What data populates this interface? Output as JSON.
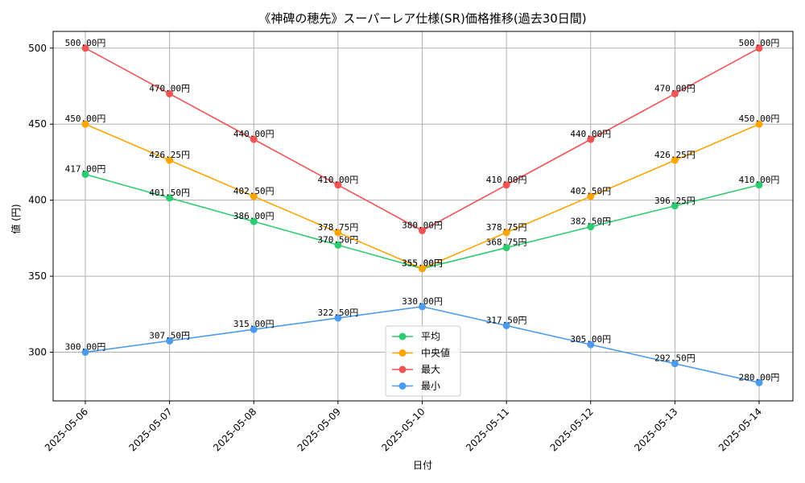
{
  "chart_data": {
    "type": "line",
    "title": "《神碑の穂先》スーパーレア仕様(SR)価格推移(過去30日間)",
    "xlabel": "日付",
    "ylabel": "値 (円)",
    "categories": [
      "2025-05-06",
      "2025-05-07",
      "2025-05-08",
      "2025-05-09",
      "2025-05-10",
      "2025-05-11",
      "2025-05-12",
      "2025-05-13",
      "2025-05-14"
    ],
    "ylim": [
      268,
      511
    ],
    "yticks": [
      300,
      350,
      400,
      450,
      500
    ],
    "grid": true,
    "legend_position": "bottom-center",
    "label_suffix": "円",
    "series": [
      {
        "name": "平均",
        "color": "#2ecc71",
        "values": [
          417.0,
          401.5,
          386.0,
          370.5,
          355.0,
          368.75,
          382.5,
          396.25,
          410.0
        ]
      },
      {
        "name": "中央値",
        "color": "#ffa500",
        "values": [
          450.0,
          426.25,
          402.5,
          378.75,
          355.0,
          378.75,
          402.5,
          426.25,
          450.0
        ]
      },
      {
        "name": "最大",
        "color": "#f05454",
        "values": [
          500.0,
          470.0,
          440.0,
          410.0,
          380.0,
          410.0,
          440.0,
          470.0,
          500.0
        ]
      },
      {
        "name": "最小",
        "color": "#4c9bef",
        "values": [
          300.0,
          307.5,
          315.0,
          322.5,
          330.0,
          317.5,
          305.0,
          292.5,
          280.0
        ]
      }
    ]
  }
}
